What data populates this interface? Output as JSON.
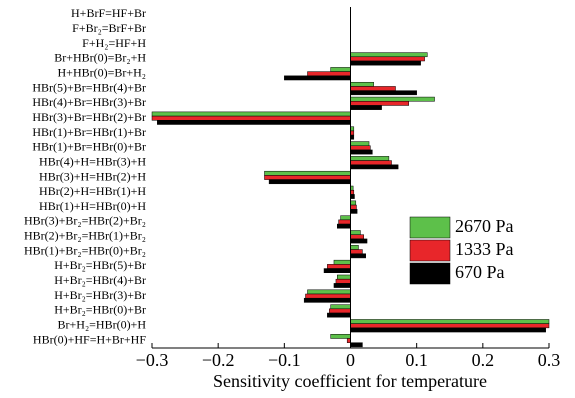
{
  "chart_data": {
    "type": "barh",
    "xlabel": "Sensitivity coefficient for temperature",
    "categories": [
      "H+BrF=HF+Br",
      "F+Br₂=BrF+Br",
      "F+H₂=HF+H",
      "Br+HBr(0)=Br₂+H",
      "H+HBr(0)=Br+H₂",
      "HBr(5)+Br=HBr(4)+Br",
      "HBr(4)+Br=HBr(3)+Br",
      "HBr(3)+Br=HBr(2)+Br",
      "HBr(1)+Br=HBr(1)+Br",
      "HBr(1)+Br=HBr(0)+Br",
      "HBr(4)+H=HBr(3)+H",
      "HBr(3)+H=HBr(2)+H",
      "HBr(2)+H=HBr(1)+H",
      "HBr(1)+H=HBr(0)+H",
      "HBr(3)+Br₂=HBr(2)+Br₂",
      "HBr(2)+Br₂=HBr(1)+Br₂",
      "HBr(1)+Br₂=HBr(0)+Br₂",
      "H+Br₂=HBr(5)+Br",
      "H+Br₂=HBr(4)+Br",
      "H+Br₂=HBr(3)+Br",
      "H+Br₂=HBr(0)+Br",
      "Br+H₂=HBr(0)+H",
      "HBr(0)+HF=H+Br+HF"
    ],
    "series": [
      {
        "name": "2670 Pa",
        "color": "#5dc04a",
        "values": [
          0,
          0,
          0,
          0.116,
          -0.03,
          0.035,
          0.127,
          -0.3,
          0.005,
          0.028,
          0.058,
          -0.13,
          0.004,
          0.008,
          -0.015,
          0.015,
          0.012,
          -0.025,
          -0.02,
          -0.065,
          -0.03,
          0.3,
          -0.03
        ]
      },
      {
        "name": "1333 Pa",
        "color": "#e8262a",
        "values": [
          0,
          0,
          0,
          0.112,
          -0.065,
          0.068,
          0.088,
          -0.3,
          0.005,
          0.03,
          0.062,
          -0.13,
          0.005,
          0.009,
          -0.018,
          0.02,
          0.018,
          -0.035,
          -0.022,
          -0.068,
          -0.032,
          0.3,
          -0.005
        ]
      },
      {
        "name": "670 Pa",
        "color": "#000000",
        "values": [
          0,
          0,
          0,
          0.106,
          -0.1,
          0.1,
          0.047,
          -0.292,
          0.005,
          0.033,
          0.072,
          -0.123,
          0.006,
          0.01,
          -0.02,
          0.025,
          0.023,
          -0.04,
          -0.025,
          -0.07,
          -0.035,
          0.295,
          0.018
        ]
      }
    ],
    "xlim": [
      -0.3,
      0.3
    ],
    "xticks": [
      {
        "value": -0.3,
        "label": "−0.3"
      },
      {
        "value": -0.2,
        "label": "−0.2"
      },
      {
        "value": -0.1,
        "label": "−0.1"
      },
      0,
      0.1,
      0.2,
      0.3
    ],
    "legend": "right"
  }
}
